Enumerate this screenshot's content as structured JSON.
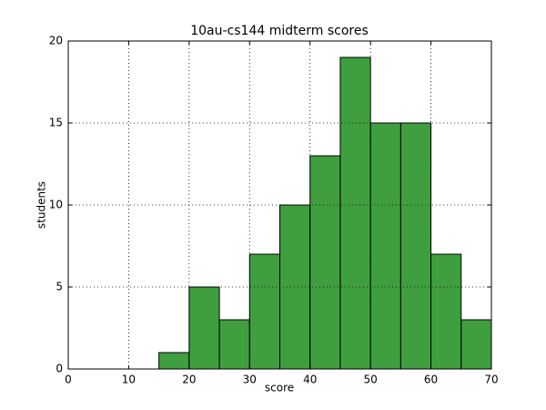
{
  "chart_data": {
    "type": "histogram",
    "title": "10au-cs144 midterm scores",
    "x_label": "score",
    "y_label": "students",
    "bins": [
      15,
      20,
      25,
      30,
      35,
      40,
      45,
      50,
      55,
      60,
      65,
      70
    ],
    "counts": [
      1,
      5,
      3,
      7,
      10,
      13,
      19,
      15,
      15,
      7,
      3
    ],
    "color": "#3f9f3f",
    "xlim": [
      0,
      70
    ],
    "ylim": [
      0,
      20
    ],
    "xticks": [
      0,
      10,
      20,
      30,
      40,
      50,
      60,
      70
    ],
    "yticks": [
      0,
      5,
      10,
      15,
      20
    ],
    "grid": true
  }
}
